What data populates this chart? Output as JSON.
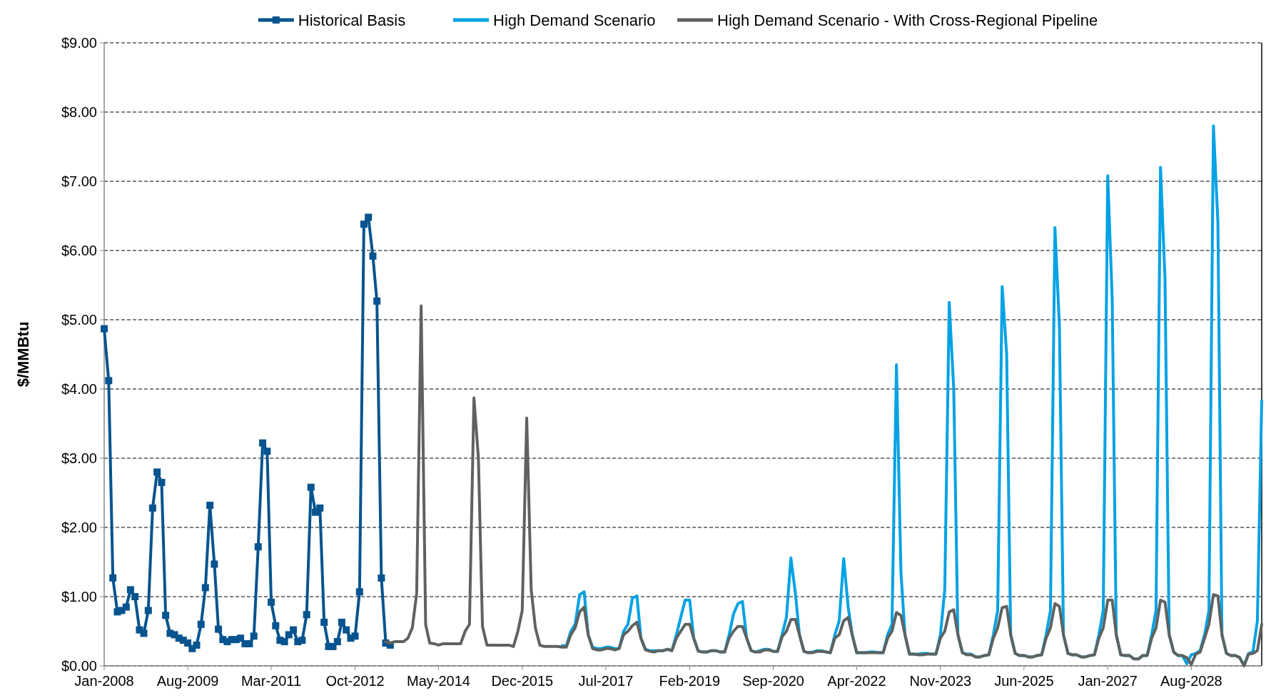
{
  "chart_data": {
    "type": "line",
    "ylabel": "$/MMBtu",
    "legend": "top",
    "grid": "y",
    "line_style": "solid",
    "xlim": [
      "2008-01",
      "2029-12"
    ],
    "xticks": [
      {
        "value": "2008-01",
        "label": "Jan-2008"
      },
      {
        "value": "2009-08",
        "label": "Aug-2009"
      },
      {
        "value": "2011-03",
        "label": "Mar-2011"
      },
      {
        "value": "2012-10",
        "label": "Oct-2012"
      },
      {
        "value": "2014-05",
        "label": "May-2014"
      },
      {
        "value": "2015-12",
        "label": "Dec-2015"
      },
      {
        "value": "2017-07",
        "label": "Jul-2017"
      },
      {
        "value": "2019-02",
        "label": "Feb-2019"
      },
      {
        "value": "2020-09",
        "label": "Sep-2020"
      },
      {
        "value": "2022-04",
        "label": "Apr-2022"
      },
      {
        "value": "2023-11",
        "label": "Nov-2023"
      },
      {
        "value": "2025-06",
        "label": "Jun-2025"
      },
      {
        "value": "2027-01",
        "label": "Jan-2027"
      },
      {
        "value": "2028-08",
        "label": "Aug-2028"
      }
    ],
    "ylim": [
      0,
      9
    ],
    "yticks": [
      {
        "value": 0,
        "label": "$0.00"
      },
      {
        "value": 1,
        "label": "$1.00"
      },
      {
        "value": 2,
        "label": "$2.00"
      },
      {
        "value": 3,
        "label": "$3.00"
      },
      {
        "value": 4,
        "label": "$4.00"
      },
      {
        "value": 5,
        "label": "$5.00"
      },
      {
        "value": 6,
        "label": "$6.00"
      },
      {
        "value": 7,
        "label": "$7.00"
      },
      {
        "value": 8,
        "label": "$8.00"
      },
      {
        "value": 9,
        "label": "$9.00"
      }
    ],
    "x": [
      "2008-01",
      "2008-02",
      "2008-03",
      "2008-04",
      "2008-05",
      "2008-06",
      "2008-07",
      "2008-08",
      "2008-09",
      "2008-10",
      "2008-11",
      "2008-12",
      "2009-01",
      "2009-02",
      "2009-03",
      "2009-04",
      "2009-05",
      "2009-06",
      "2009-07",
      "2009-08",
      "2009-09",
      "2009-10",
      "2009-11",
      "2009-12",
      "2010-01",
      "2010-02",
      "2010-03",
      "2010-04",
      "2010-05",
      "2010-06",
      "2010-07",
      "2010-08",
      "2010-09",
      "2010-10",
      "2010-11",
      "2010-12",
      "2011-01",
      "2011-02",
      "2011-03",
      "2011-04",
      "2011-05",
      "2011-06",
      "2011-07",
      "2011-08",
      "2011-09",
      "2011-10",
      "2011-11",
      "2011-12",
      "2012-01",
      "2012-02",
      "2012-03",
      "2012-04",
      "2012-05",
      "2012-06",
      "2012-07",
      "2012-08",
      "2012-09",
      "2012-10",
      "2012-11",
      "2012-12",
      "2013-01",
      "2013-02",
      "2013-03",
      "2013-04",
      "2013-05",
      "2013-06",
      "2013-07",
      "2013-08",
      "2013-09",
      "2013-10",
      "2013-11",
      "2013-12",
      "2014-01",
      "2014-02",
      "2014-03",
      "2014-04",
      "2014-05",
      "2014-06",
      "2014-07",
      "2014-08",
      "2014-09",
      "2014-10",
      "2014-11",
      "2014-12",
      "2015-01",
      "2015-02",
      "2015-03",
      "2015-04",
      "2015-05",
      "2015-06",
      "2015-07",
      "2015-08",
      "2015-09",
      "2015-10",
      "2015-11",
      "2015-12",
      "2016-01",
      "2016-02",
      "2016-03",
      "2016-04",
      "2016-05",
      "2016-06",
      "2016-07",
      "2016-08",
      "2016-09",
      "2016-10",
      "2016-11",
      "2016-12",
      "2017-01",
      "2017-02",
      "2017-03",
      "2017-04",
      "2017-05",
      "2017-06",
      "2017-07",
      "2017-08",
      "2017-09",
      "2017-10",
      "2017-11",
      "2017-12",
      "2018-01",
      "2018-02",
      "2018-03",
      "2018-04",
      "2018-05",
      "2018-06",
      "2018-07",
      "2018-08",
      "2018-09",
      "2018-10",
      "2018-11",
      "2018-12",
      "2019-01",
      "2019-02",
      "2019-03",
      "2019-04",
      "2019-05",
      "2019-06",
      "2019-07",
      "2019-08",
      "2019-09",
      "2019-10",
      "2019-11",
      "2019-12",
      "2020-01",
      "2020-02",
      "2020-03",
      "2020-04",
      "2020-05",
      "2020-06",
      "2020-07",
      "2020-08",
      "2020-09",
      "2020-10",
      "2020-11",
      "2020-12",
      "2021-01",
      "2021-02",
      "2021-03",
      "2021-04",
      "2021-05",
      "2021-06",
      "2021-07",
      "2021-08",
      "2021-09",
      "2021-10",
      "2021-11",
      "2021-12",
      "2022-01",
      "2022-02",
      "2022-03",
      "2022-04",
      "2022-05",
      "2022-06",
      "2022-07",
      "2022-08",
      "2022-09",
      "2022-10",
      "2022-11",
      "2022-12",
      "2023-01",
      "2023-02",
      "2023-03",
      "2023-04",
      "2023-05",
      "2023-06",
      "2023-07",
      "2023-08",
      "2023-09",
      "2023-10",
      "2023-11",
      "2023-12",
      "2024-01",
      "2024-02",
      "2024-03",
      "2024-04",
      "2024-05",
      "2024-06",
      "2024-07",
      "2024-08",
      "2024-09",
      "2024-10",
      "2024-11",
      "2024-12",
      "2025-01",
      "2025-02",
      "2025-03",
      "2025-04",
      "2025-05",
      "2025-06",
      "2025-07",
      "2025-08",
      "2025-09",
      "2025-10",
      "2025-11",
      "2025-12",
      "2026-01",
      "2026-02",
      "2026-03",
      "2026-04",
      "2026-05",
      "2026-06",
      "2026-07",
      "2026-08",
      "2026-09",
      "2026-10",
      "2026-11",
      "2026-12",
      "2027-01",
      "2027-02",
      "2027-03",
      "2027-04",
      "2027-05",
      "2027-06",
      "2027-07",
      "2027-08",
      "2027-09",
      "2027-10",
      "2027-11",
      "2027-12",
      "2028-01",
      "2028-02",
      "2028-03",
      "2028-04",
      "2028-05",
      "2028-06",
      "2028-07",
      "2028-08",
      "2028-09",
      "2028-10",
      "2028-11",
      "2028-12",
      "2029-01",
      "2029-02",
      "2029-03",
      "2029-04",
      "2029-05",
      "2029-06",
      "2029-07",
      "2029-08",
      "2029-09",
      "2029-10",
      "2029-11",
      "2029-12"
    ],
    "series": [
      {
        "name": "Historical Basis",
        "color": "#06548f",
        "marker": "square",
        "values": [
          4.87,
          4.12,
          1.27,
          0.78,
          0.8,
          0.85,
          1.1,
          1.0,
          0.52,
          0.47,
          0.8,
          2.28,
          2.8,
          2.65,
          0.73,
          0.47,
          0.45,
          0.4,
          0.37,
          0.33,
          0.25,
          0.3,
          0.6,
          1.13,
          2.32,
          1.47,
          0.53,
          0.38,
          0.35,
          0.38,
          0.38,
          0.4,
          0.32,
          0.32,
          0.43,
          1.72,
          3.22,
          3.1,
          0.92,
          0.58,
          0.37,
          0.35,
          0.45,
          0.52,
          0.35,
          0.37,
          0.74,
          2.58,
          2.22,
          2.28,
          0.63,
          0.28,
          0.28,
          0.35,
          0.63,
          0.52,
          0.4,
          0.43,
          1.07,
          6.38,
          6.48,
          5.92,
          5.27,
          1.27,
          0.33,
          0.3,
          null,
          null,
          null,
          null,
          null,
          null,
          null,
          null,
          null,
          null,
          null,
          null,
          null,
          null,
          null,
          null,
          null,
          null,
          null,
          null,
          null,
          null,
          null,
          null,
          null,
          null,
          null,
          null,
          null,
          null,
          null,
          null,
          null,
          null,
          null,
          null,
          null,
          null,
          null,
          null,
          null,
          null,
          null,
          null,
          null,
          null,
          null,
          null,
          null,
          null,
          null,
          null,
          null,
          null,
          null,
          null,
          null,
          null,
          null,
          null,
          null,
          null,
          null,
          null,
          null,
          null,
          null,
          null,
          null,
          null,
          null,
          null,
          null,
          null,
          null,
          null,
          null,
          null,
          null,
          null,
          null,
          null,
          null,
          null,
          null,
          null,
          null,
          null,
          null,
          null,
          null,
          null,
          null,
          null,
          null,
          null,
          null,
          null,
          null,
          null,
          null,
          null,
          null,
          null,
          null,
          null,
          null,
          null,
          null,
          null,
          null,
          null,
          null,
          null,
          null,
          null,
          null,
          null,
          null,
          null,
          null,
          null,
          null,
          null,
          null,
          null,
          null,
          null,
          null,
          null,
          null,
          null,
          null,
          null,
          null,
          null,
          null,
          null,
          null,
          null,
          null,
          null,
          null,
          null,
          null,
          null,
          null,
          null,
          null,
          null,
          null,
          null,
          null,
          null,
          null,
          null,
          null,
          null,
          null,
          null,
          null,
          null,
          null,
          null,
          null,
          null,
          null,
          null,
          null,
          null,
          null,
          null,
          null,
          null,
          null,
          null,
          null,
          null,
          null,
          null,
          null,
          null,
          null,
          null,
          null,
          null,
          null,
          null,
          null,
          null,
          null,
          null,
          null,
          null,
          null,
          null,
          null,
          null
        ]
      },
      {
        "name": "High Demand Scenario",
        "color": "#00a2e5",
        "marker": "none",
        "values": [
          null,
          null,
          null,
          null,
          null,
          null,
          null,
          null,
          null,
          null,
          null,
          null,
          null,
          null,
          null,
          null,
          null,
          null,
          null,
          null,
          null,
          null,
          null,
          null,
          null,
          null,
          null,
          null,
          null,
          null,
          null,
          null,
          null,
          null,
          null,
          null,
          null,
          null,
          null,
          null,
          null,
          null,
          null,
          null,
          null,
          null,
          null,
          null,
          null,
          null,
          null,
          null,
          null,
          null,
          null,
          null,
          null,
          null,
          null,
          null,
          null,
          null,
          null,
          null,
          null,
          null,
          null,
          null,
          null,
          null,
          null,
          null,
          null,
          null,
          null,
          null,
          null,
          null,
          null,
          null,
          null,
          null,
          null,
          null,
          null,
          null,
          null,
          null,
          null,
          null,
          null,
          null,
          null,
          null,
          null,
          null,
          null,
          null,
          null,
          null,
          null,
          null,
          null,
          null,
          0.29,
          0.29,
          0.5,
          0.6,
          1.03,
          1.07,
          0.45,
          0.27,
          0.25,
          0.25,
          0.27,
          0.27,
          0.25,
          0.25,
          0.5,
          0.6,
          0.98,
          1.01,
          0.4,
          0.24,
          0.22,
          0.22,
          0.22,
          0.22,
          0.24,
          0.22,
          0.45,
          0.7,
          0.95,
          0.95,
          0.4,
          0.22,
          0.2,
          0.2,
          0.22,
          0.22,
          0.2,
          0.2,
          0.45,
          0.75,
          0.9,
          0.93,
          0.4,
          0.22,
          0.2,
          0.22,
          0.24,
          0.24,
          0.21,
          0.21,
          0.45,
          0.7,
          1.56,
          1.05,
          0.45,
          0.21,
          0.19,
          0.2,
          0.22,
          0.22,
          0.2,
          0.19,
          0.45,
          0.65,
          1.55,
          0.85,
          0.45,
          0.19,
          0.19,
          0.19,
          0.2,
          0.2,
          0.19,
          0.19,
          0.45,
          0.6,
          4.35,
          1.35,
          0.45,
          0.17,
          0.17,
          0.17,
          0.18,
          0.18,
          0.17,
          0.17,
          0.45,
          1.1,
          5.25,
          4.0,
          0.45,
          0.19,
          0.17,
          0.17,
          0.13,
          0.13,
          0.15,
          0.16,
          0.45,
          0.8,
          5.48,
          4.5,
          0.45,
          0.18,
          0.15,
          0.15,
          0.13,
          0.13,
          0.15,
          0.16,
          0.45,
          0.8,
          6.33,
          4.9,
          0.45,
          0.18,
          0.16,
          0.16,
          0.13,
          0.13,
          0.15,
          0.16,
          0.45,
          0.8,
          7.08,
          5.3,
          0.45,
          0.16,
          0.15,
          0.15,
          0.1,
          0.1,
          0.15,
          0.15,
          0.45,
          0.8,
          7.2,
          5.6,
          0.45,
          0.2,
          0.15,
          0.15,
          0.03,
          0.16,
          0.18,
          0.22,
          0.45,
          0.8,
          7.8,
          6.4,
          0.45,
          0.18,
          0.15,
          0.15,
          0.12,
          0.01,
          0.18,
          0.2,
          0.65,
          3.83
        ]
      },
      {
        "name": "High Demand Scenario - With Cross-Regional Pipeline",
        "color": "#5f625f",
        "marker": "none",
        "values": [
          null,
          null,
          null,
          null,
          null,
          null,
          null,
          null,
          null,
          null,
          null,
          null,
          null,
          null,
          null,
          null,
          null,
          null,
          null,
          null,
          null,
          null,
          null,
          null,
          null,
          null,
          null,
          null,
          null,
          null,
          null,
          null,
          null,
          null,
          null,
          null,
          null,
          null,
          null,
          null,
          null,
          null,
          null,
          null,
          null,
          null,
          null,
          null,
          null,
          null,
          null,
          null,
          null,
          null,
          null,
          null,
          null,
          null,
          null,
          null,
          null,
          null,
          null,
          null,
          0.35,
          0.33,
          0.35,
          0.35,
          0.35,
          0.4,
          0.55,
          1.05,
          5.2,
          0.6,
          0.33,
          0.32,
          0.3,
          0.32,
          0.32,
          0.32,
          0.32,
          0.32,
          0.5,
          0.6,
          3.87,
          3.0,
          0.57,
          0.3,
          0.3,
          0.3,
          0.3,
          0.3,
          0.3,
          0.28,
          0.5,
          0.8,
          3.58,
          1.1,
          0.55,
          0.3,
          0.28,
          0.28,
          0.28,
          0.28,
          0.27,
          0.27,
          0.45,
          0.55,
          0.78,
          0.85,
          0.45,
          0.25,
          0.23,
          0.23,
          0.25,
          0.25,
          0.23,
          0.25,
          0.45,
          0.5,
          0.58,
          0.63,
          0.4,
          0.23,
          0.21,
          0.2,
          0.22,
          0.22,
          0.24,
          0.22,
          0.4,
          0.5,
          0.6,
          0.6,
          0.4,
          0.21,
          0.2,
          0.2,
          0.22,
          0.22,
          0.2,
          0.2,
          0.4,
          0.5,
          0.57,
          0.57,
          0.4,
          0.22,
          0.2,
          0.2,
          0.23,
          0.23,
          0.21,
          0.21,
          0.42,
          0.5,
          0.67,
          0.67,
          0.45,
          0.21,
          0.19,
          0.19,
          0.21,
          0.21,
          0.2,
          0.19,
          0.4,
          0.45,
          0.65,
          0.7,
          0.45,
          0.19,
          0.19,
          0.19,
          0.19,
          0.19,
          0.19,
          0.19,
          0.4,
          0.5,
          0.77,
          0.73,
          0.45,
          0.17,
          0.17,
          0.16,
          0.16,
          0.17,
          0.17,
          0.17,
          0.4,
          0.5,
          0.78,
          0.81,
          0.45,
          0.19,
          0.16,
          0.16,
          0.13,
          0.13,
          0.15,
          0.16,
          0.4,
          0.55,
          0.84,
          0.86,
          0.45,
          0.18,
          0.15,
          0.15,
          0.13,
          0.13,
          0.15,
          0.16,
          0.4,
          0.55,
          0.9,
          0.86,
          0.45,
          0.18,
          0.16,
          0.16,
          0.13,
          0.13,
          0.15,
          0.16,
          0.4,
          0.55,
          0.95,
          0.95,
          0.45,
          0.16,
          0.15,
          0.15,
          0.1,
          0.1,
          0.15,
          0.15,
          0.4,
          0.55,
          0.95,
          0.92,
          0.45,
          0.2,
          0.15,
          0.15,
          0.12,
          0.02,
          0.17,
          0.2,
          0.4,
          0.6,
          1.03,
          1.01,
          0.45,
          0.18,
          0.15,
          0.15,
          0.12,
          0.0,
          0.17,
          0.18,
          0.22,
          0.6
        ]
      }
    ]
  }
}
